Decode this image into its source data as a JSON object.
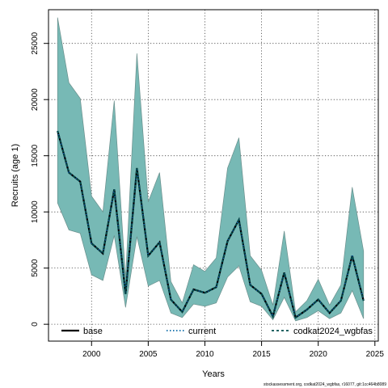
{
  "chart_data": {
    "type": "line",
    "title": "",
    "xlabel": "Years",
    "ylabel": "Recruits (age 1)",
    "xlim": [
      1996.2,
      2025.3
    ],
    "ylim": [
      -1500,
      28000
    ],
    "xticks": [
      2000,
      2005,
      2010,
      2015,
      2020,
      2025
    ],
    "yticks": [
      0,
      5000,
      10000,
      15000,
      20000,
      25000
    ],
    "x_tick_labels": [
      "2000",
      "2005",
      "2010",
      "2015",
      "2020",
      "2025"
    ],
    "y_tick_labels": [
      "0",
      "5000",
      "10000",
      "15000",
      "20000",
      "25000"
    ],
    "grid": true,
    "legend_position": "bottom",
    "band_color": "#77b9b5",
    "band_edge_color": "#6a8f8c",
    "x": [
      1997,
      1998,
      1999,
      2000,
      2001,
      2002,
      2003,
      2004,
      2005,
      2006,
      2007,
      2008,
      2009,
      2010,
      2011,
      2012,
      2013,
      2014,
      2015,
      2016,
      2017,
      2018,
      2019,
      2020,
      2021,
      2022,
      2023,
      2024
    ],
    "band": {
      "upper": [
        27300,
        21500,
        20100,
        11400,
        10000,
        19900,
        4100,
        24100,
        10900,
        13500,
        3800,
        1900,
        5300,
        4700,
        5900,
        13900,
        16600,
        6100,
        4800,
        1700,
        8300,
        1100,
        2100,
        4000,
        1700,
        3500,
        12200,
        6500
      ],
      "lower": [
        10800,
        8400,
        8100,
        4400,
        3900,
        7900,
        1500,
        7800,
        3400,
        3900,
        1000,
        600,
        1800,
        1600,
        1900,
        4200,
        5200,
        2000,
        1600,
        400,
        2400,
        300,
        600,
        1200,
        500,
        1000,
        3000,
        500
      ]
    },
    "series": [
      {
        "name": "base",
        "color": "#000000",
        "dash": "solid",
        "values": [
          17200,
          13500,
          12700,
          7200,
          6300,
          12000,
          2700,
          13900,
          6100,
          7300,
          2200,
          1100,
          3100,
          2800,
          3300,
          7400,
          9300,
          3500,
          2700,
          700,
          4600,
          600,
          1300,
          2200,
          1000,
          2100,
          6100,
          2100
        ]
      },
      {
        "name": "current",
        "color": "#0a6aa8",
        "dash": "dotted",
        "values": [
          17200,
          13500,
          12700,
          7200,
          6300,
          12000,
          2700,
          13900,
          6100,
          7300,
          2200,
          1100,
          3100,
          2800,
          3300,
          7400,
          9300,
          3500,
          2700,
          700,
          4600,
          600,
          1300,
          2200,
          1000,
          2100,
          6100,
          2100
        ]
      },
      {
        "name": "codkat2024_wgbfas",
        "color": "#004d4d",
        "dash": "dashed",
        "values": [
          17200,
          13500,
          12700,
          7200,
          6300,
          12000,
          2700,
          13900,
          6100,
          7300,
          2200,
          1100,
          3100,
          2800,
          3300,
          7400,
          9300,
          3500,
          2700,
          700,
          4600,
          600,
          1300,
          2200,
          1000,
          2100,
          6100,
          2100
        ]
      }
    ],
    "footnote": "stockassessment.org, codkat2024_wgbfas, r16077, git:1cc464b8089"
  }
}
